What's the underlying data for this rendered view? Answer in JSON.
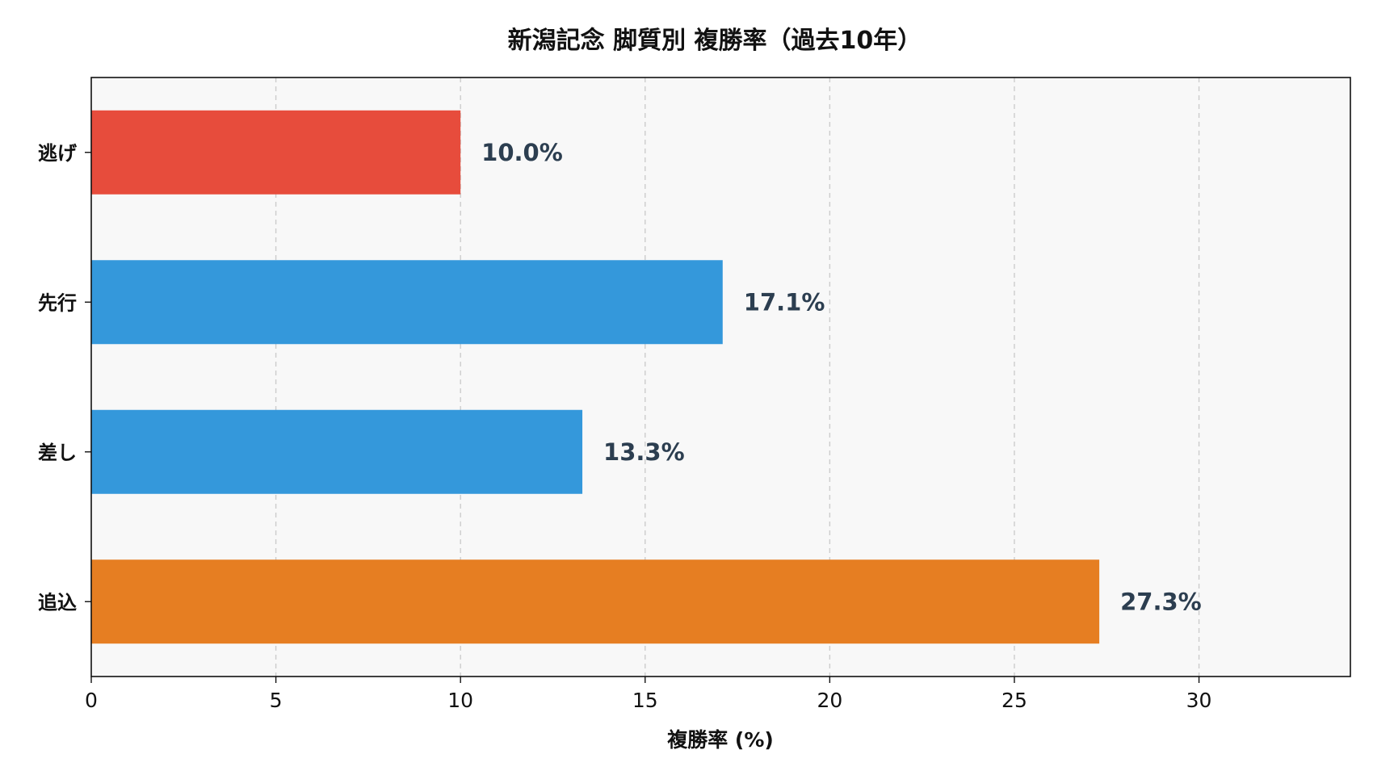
{
  "chart_data": {
    "type": "bar",
    "orientation": "horizontal",
    "title": "新潟記念 脚質別 複勝率（過去10年）",
    "xlabel": "複勝率 (%)",
    "ylabel": "",
    "categories": [
      "逃げ",
      "先行",
      "差し",
      "追込"
    ],
    "values": [
      10.0,
      17.1,
      13.3,
      27.3
    ],
    "value_labels": [
      "10.0%",
      "17.1%",
      "13.3%",
      "27.3%"
    ],
    "colors": [
      "#e74c3c",
      "#3498db",
      "#3498db",
      "#e67e22"
    ],
    "xlim": [
      0,
      34.1
    ],
    "xticks": [
      0,
      5,
      10,
      15,
      20,
      25,
      30
    ],
    "grid": "vertical dashed",
    "background": "#f8f8f8"
  }
}
